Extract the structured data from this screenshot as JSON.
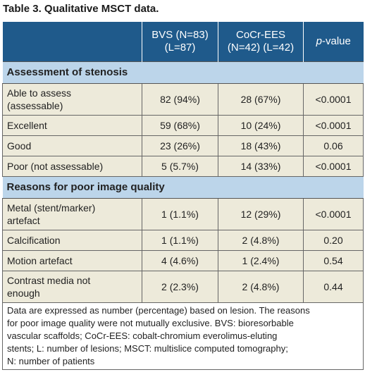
{
  "title": "Table 3. Qualitative MSCT data.",
  "table": {
    "header": {
      "columns": [
        [
          "BVS (N=83)",
          "(L=87)"
        ],
        [
          "CoCr-EES",
          "(N=42) (L=42)"
        ]
      ],
      "p_value": {
        "italic": "p",
        "text": "-value"
      }
    },
    "sections": [
      {
        "title": "Assessment of stenosis",
        "rows": [
          {
            "label": [
              "Able to assess",
              "(assessable)"
            ],
            "cells": [
              "82 (94%)",
              "28 (67%)",
              "<0.0001"
            ]
          },
          {
            "label": [
              "Excellent"
            ],
            "cells": [
              "59 (68%)",
              "10 (24%)",
              "<0.0001"
            ]
          },
          {
            "label": [
              "Good"
            ],
            "cells": [
              "23 (26%)",
              "18 (43%)",
              "0.06"
            ]
          },
          {
            "label": [
              "Poor (not assessable)"
            ],
            "cells": [
              "5 (5.7%)",
              "14 (33%)",
              "<0.0001"
            ]
          }
        ]
      },
      {
        "title": "Reasons for poor image quality",
        "rows": [
          {
            "label": [
              "Metal (stent/marker)",
              "artefact"
            ],
            "cells": [
              "1 (1.1%)",
              "12 (29%)",
              "<0.0001"
            ]
          },
          {
            "label": [
              "Calcification"
            ],
            "cells": [
              "1 (1.1%)",
              "2 (4.8%)",
              "0.20"
            ]
          },
          {
            "label": [
              "Motion artefact"
            ],
            "cells": [
              "4 (4.6%)",
              "1 (2.4%)",
              "0.54"
            ]
          },
          {
            "label": [
              "Contrast media not",
              "enough"
            ],
            "cells": [
              "2 (2.3%)",
              "2 (4.8%)",
              "0.44"
            ]
          }
        ]
      }
    ],
    "footnote": [
      "Data are expressed as number (percentage) based on lesion. The reasons",
      "for poor image quality were not mutually exclusive. BVS: bioresorbable",
      "vascular scaffolds; CoCr-EES: cobalt-chromium everolimus-eluting",
      "stents; L: number of lesions; MSCT: multislice computed tomography;",
      "N: number of patients"
    ]
  }
}
